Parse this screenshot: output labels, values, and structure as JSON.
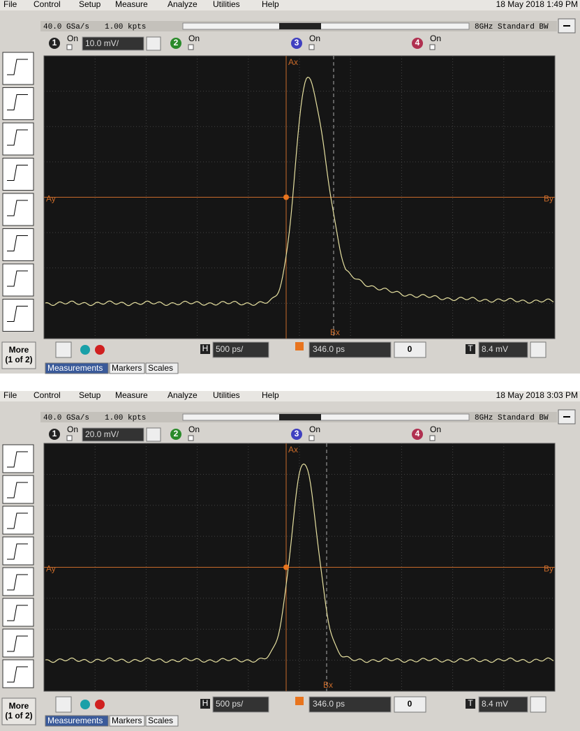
{
  "screens": [
    {
      "menu": [
        "File",
        "Control",
        "Setup",
        "Measure",
        "Analyze",
        "Utilities",
        "Help"
      ],
      "datetime": "18 May 2018  1:49 PM",
      "sample_rate": "40.0 GSa/s",
      "memory": "1.00 kpts",
      "bandwidth": "8GHz Standard BW",
      "channels": [
        {
          "number": "1",
          "state": "On",
          "scale": "10.0 mV/"
        },
        {
          "number": "2",
          "state": "On"
        },
        {
          "number": "3",
          "state": "On"
        },
        {
          "number": "4",
          "state": "On"
        }
      ],
      "markers": {
        "ax": "Ax",
        "ay": "Ay",
        "bx": "Bx",
        "by": "By"
      },
      "more": "More",
      "more_page": "(1 of 2)",
      "horizontal_label": "H",
      "timebase": "500 ps/",
      "delay": "346.0 ps",
      "nav_value": "0",
      "trigger_label": "T",
      "trigger_level": "8.4 mV",
      "tabs": [
        "Measurements",
        "Markers",
        "Scales"
      ]
    },
    {
      "menu": [
        "File",
        "Control",
        "Setup",
        "Measure",
        "Analyze",
        "Utilities",
        "Help"
      ],
      "datetime": "18 May 2018  3:03 PM",
      "sample_rate": "40.0 GSa/s",
      "memory": "1.00 kpts",
      "bandwidth": "8GHz Standard BW",
      "channels": [
        {
          "number": "1",
          "state": "On",
          "scale": "20.0 mV/"
        },
        {
          "number": "2",
          "state": "On"
        },
        {
          "number": "3",
          "state": "On"
        },
        {
          "number": "4",
          "state": "On"
        }
      ],
      "markers": {
        "ax": "Ax",
        "ay": "Ay",
        "bx": "Bx",
        "by": "By"
      },
      "more": "More",
      "more_page": "(1 of 2)",
      "horizontal_label": "H",
      "timebase": "500 ps/",
      "delay": "346.0 ps",
      "nav_value": "0",
      "trigger_label": "T",
      "trigger_level": "8.4 mV",
      "tabs": [
        "Measurements",
        "Markers",
        "Scales"
      ]
    }
  ]
}
